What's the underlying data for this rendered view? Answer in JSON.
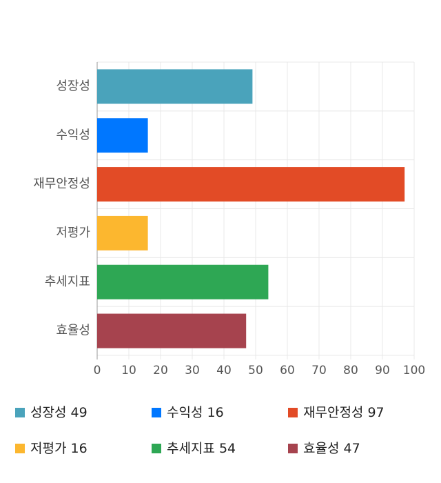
{
  "chart_data": {
    "type": "bar",
    "orientation": "horizontal",
    "categories": [
      "성장성",
      "수익성",
      "재무안정성",
      "저평가",
      "추세지표",
      "효율성"
    ],
    "values": [
      49,
      16,
      97,
      16,
      54,
      47
    ],
    "colors": [
      "#4aa3bb",
      "#0077ff",
      "#e24b26",
      "#fcb72f",
      "#2ea754",
      "#a6434e"
    ],
    "xlim": [
      0,
      100
    ],
    "xticks": [
      0,
      10,
      20,
      30,
      40,
      50,
      60,
      70,
      80,
      90,
      100
    ],
    "grid": true
  }
}
